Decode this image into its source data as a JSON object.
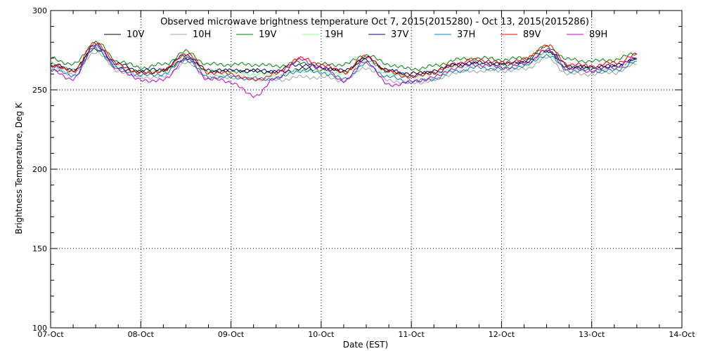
{
  "chart_data": {
    "type": "line",
    "title": "Observed microwave brightness temperature Oct  7, 2015(2015280) - Oct 13, 2015(2015286)",
    "xlabel": "Date (EST)",
    "ylabel": "Brightness Temperature, Deg K",
    "ylim": [
      100,
      300
    ],
    "yticks": [
      "100",
      "150",
      "200",
      "250",
      "300"
    ],
    "xticks": [
      "07-Oct",
      "08-Oct",
      "09-Oct",
      "10-Oct",
      "11-Oct",
      "12-Oct",
      "13-Oct",
      "14-Oct"
    ],
    "grid": true,
    "legend_position": "top",
    "x": [
      "07-Oct 00:00",
      "07-Oct 06:00",
      "07-Oct 12:00",
      "07-Oct 18:00",
      "08-Oct 00:00",
      "08-Oct 06:00",
      "08-Oct 12:00",
      "08-Oct 18:00",
      "09-Oct 00:00",
      "09-Oct 06:00",
      "09-Oct 12:00",
      "09-Oct 18:00",
      "10-Oct 00:00",
      "10-Oct 06:00",
      "10-Oct 12:00",
      "10-Oct 18:00",
      "11-Oct 00:00",
      "11-Oct 06:00",
      "11-Oct 12:00",
      "11-Oct 18:00",
      "12-Oct 00:00",
      "12-Oct 06:00",
      "12-Oct 12:00",
      "12-Oct 18:00",
      "13-Oct 00:00",
      "13-Oct 06:00",
      "13-Oct 12:00"
    ],
    "series": [
      {
        "name": "10V",
        "color": "#000000",
        "values": [
          266,
          263,
          276,
          264,
          261,
          262,
          270,
          262,
          262,
          262,
          261,
          263,
          263,
          262,
          269,
          262,
          260,
          262,
          266,
          267,
          266,
          267,
          274,
          264,
          264,
          265,
          269
        ]
      },
      {
        "name": "10H",
        "color": "#a0a0a0",
        "values": [
          264,
          260,
          274,
          262,
          258,
          258,
          267,
          258,
          258,
          257,
          256,
          258,
          258,
          256,
          264,
          256,
          254,
          256,
          261,
          262,
          262,
          263,
          270,
          260,
          260,
          261,
          266
        ]
      },
      {
        "name": "19V",
        "color": "#008000",
        "values": [
          270,
          266,
          280,
          268,
          264,
          266,
          274,
          266,
          266,
          266,
          265,
          267,
          266,
          266,
          272,
          266,
          263,
          265,
          269,
          270,
          269,
          270,
          277,
          269,
          268,
          269,
          273
        ]
      },
      {
        "name": "19H",
        "color": "#80ff80",
        "values": [
          267,
          262,
          277,
          265,
          261,
          262,
          271,
          261,
          261,
          260,
          259,
          262,
          262,
          260,
          268,
          260,
          258,
          260,
          264,
          266,
          265,
          266,
          273,
          264,
          263,
          264,
          269
        ]
      },
      {
        "name": "37V",
        "color": "#000080",
        "values": [
          266,
          262,
          278,
          266,
          262,
          263,
          272,
          262,
          262,
          262,
          262,
          266,
          264,
          262,
          270,
          262,
          259,
          261,
          266,
          267,
          266,
          268,
          275,
          265,
          264,
          265,
          270
        ]
      },
      {
        "name": "37H",
        "color": "#0080c0",
        "values": [
          263,
          259,
          276,
          263,
          259,
          260,
          269,
          258,
          258,
          257,
          257,
          262,
          261,
          257,
          266,
          258,
          255,
          257,
          262,
          264,
          263,
          265,
          272,
          262,
          262,
          262,
          268
        ]
      },
      {
        "name": "89V",
        "color": "#ff0000",
        "values": [
          265,
          262,
          280,
          266,
          260,
          262,
          273,
          261,
          260,
          256,
          260,
          270,
          266,
          261,
          271,
          261,
          258,
          261,
          267,
          269,
          267,
          269,
          278,
          266,
          265,
          267,
          272
        ]
      },
      {
        "name": "89H",
        "color": "#c000c0",
        "values": [
          262,
          257,
          278,
          263,
          256,
          256,
          270,
          257,
          255,
          246,
          257,
          269,
          264,
          256,
          268,
          253,
          255,
          258,
          264,
          266,
          264,
          266,
          275,
          263,
          262,
          264,
          270
        ]
      }
    ]
  }
}
